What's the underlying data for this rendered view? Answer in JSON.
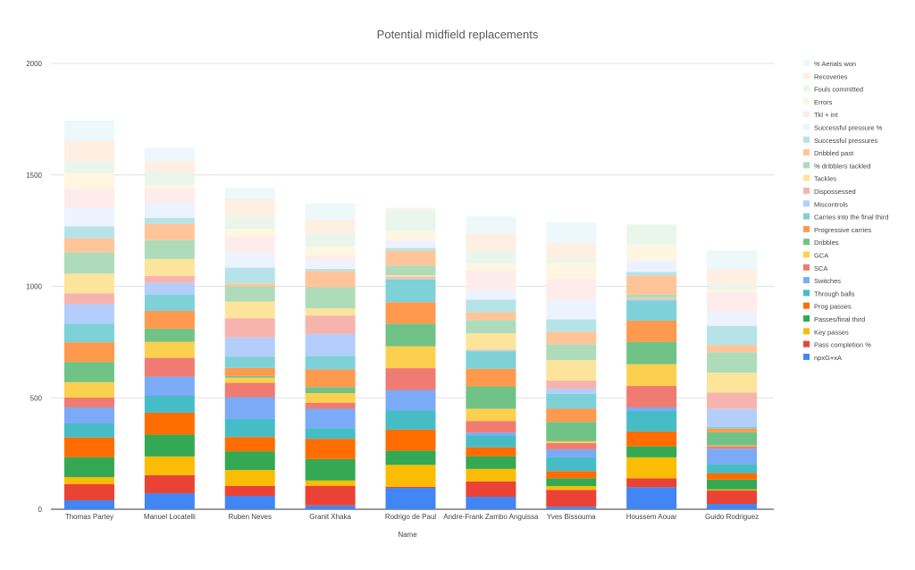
{
  "chart_data": {
    "type": "bar",
    "stacked": true,
    "title": "Potential midfield replacements",
    "xlabel": "Name",
    "ylabel": "",
    "ylim": [
      0,
      2000
    ],
    "yticks": [
      0,
      500,
      1000,
      1500,
      2000
    ],
    "grid": true,
    "legend_position": "right",
    "categories": [
      "Thomas Partey",
      "Manuel Locatelli",
      "Ruben Neves",
      "Granit Xhaka",
      "Rodrigo de Paul",
      "Andre-Frank Zambo Anguissa",
      "Yves Bissouma",
      "Houssem Aouar",
      "Guido Rodriguez"
    ],
    "series": [
      {
        "name": "npxG+xA",
        "color": "#4285f4",
        "values": [
          40,
          72,
          60,
          17,
          96,
          56,
          11,
          99,
          24
        ]
      },
      {
        "name": "Pass completion %",
        "color": "#ea4335",
        "values": [
          73,
          81,
          45,
          88,
          5,
          69,
          76,
          40,
          60
        ]
      },
      {
        "name": "Key passes",
        "color": "#fbbc04",
        "values": [
          31,
          84,
          71,
          24,
          98,
          56,
          17,
          94,
          5
        ]
      },
      {
        "name": "Passes/final third",
        "color": "#34a853",
        "values": [
          90,
          98,
          84,
          96,
          64,
          57,
          35,
          49,
          44
        ]
      },
      {
        "name": "Prog passes",
        "color": "#ff6d01",
        "values": [
          88,
          98,
          64,
          91,
          94,
          40,
          32,
          67,
          29
        ]
      },
      {
        "name": "Through balls",
        "color": "#46bdc6",
        "values": [
          63,
          76,
          81,
          48,
          86,
          53,
          63,
          92,
          41
        ]
      },
      {
        "name": "Switches",
        "color": "#7baaf7",
        "values": [
          72,
          86,
          98,
          87,
          92,
          13,
          35,
          16,
          69
        ]
      },
      {
        "name": "SCA",
        "color": "#f07b72",
        "values": [
          44,
          84,
          64,
          27,
          98,
          52,
          28,
          96,
          11
        ]
      },
      {
        "name": "GCA",
        "color": "#fcd04f",
        "values": [
          69,
          72,
          23,
          43,
          98,
          55,
          8,
          98,
          3
        ]
      },
      {
        "name": "Dribbles",
        "color": "#71c287",
        "values": [
          91,
          59,
          8,
          27,
          102,
          100,
          87,
          100,
          60
        ]
      },
      {
        "name": "Progressive carries",
        "color": "#ff994d",
        "values": [
          88,
          80,
          36,
          79,
          96,
          79,
          59,
          95,
          16
        ]
      },
      {
        "name": "Carries into the final third",
        "color": "#7ed1d7",
        "values": [
          84,
          72,
          51,
          60,
          102,
          79,
          67,
          90,
          7
        ]
      },
      {
        "name": "Miscontrols",
        "color": "#b3cefb",
        "values": [
          87,
          53,
          86,
          99,
          4,
          4,
          23,
          4,
          81
        ]
      },
      {
        "name": "Dispossessed",
        "color": "#f7b4ae",
        "values": [
          49,
          32,
          86,
          83,
          7,
          3,
          37,
          4,
          73
        ]
      },
      {
        "name": "Tackles",
        "color": "#fde49b",
        "values": [
          88,
          76,
          75,
          32,
          8,
          73,
          91,
          3,
          90
        ]
      },
      {
        "name": "% dribblers tackled",
        "color": "#aedcba",
        "values": [
          96,
          84,
          68,
          95,
          43,
          60,
          71,
          15,
          91
        ]
      },
      {
        "name": "Dribbled past",
        "color": "#ffc599",
        "values": [
          63,
          75,
          13,
          73,
          67,
          35,
          57,
          87,
          33
        ]
      },
      {
        "name": "Successful pressures",
        "color": "#b5e3e8",
        "values": [
          53,
          25,
          71,
          9,
          12,
          56,
          55,
          16,
          86
        ]
      },
      {
        "name": "Successful pressure %",
        "color": "#ecf3fe",
        "values": [
          81,
          67,
          69,
          41,
          32,
          43,
          87,
          51,
          61
        ]
      },
      {
        "name": "Tkl + int",
        "color": "#fdeceb",
        "values": [
          88,
          65,
          69,
          19,
          4,
          87,
          94,
          0,
          90
        ]
      },
      {
        "name": "Errors",
        "color": "#fff6e1",
        "values": [
          71,
          16,
          36,
          40,
          40,
          33,
          71,
          71,
          13
        ]
      },
      {
        "name": "Fouls committed",
        "color": "#eaf6ec",
        "values": [
          52,
          56,
          56,
          60,
          87,
          57,
          20,
          91,
          20
        ]
      },
      {
        "name": "Recoveries",
        "color": "#ffeee2",
        "values": [
          92,
          51,
          77,
          61,
          9,
          76,
          71,
          0,
          71
        ]
      },
      {
        "name": "% Aerials won",
        "color": "#ecf8fa",
        "values": [
          91,
          60,
          51,
          73,
          8,
          77,
          92,
          0,
          83
        ]
      }
    ]
  }
}
